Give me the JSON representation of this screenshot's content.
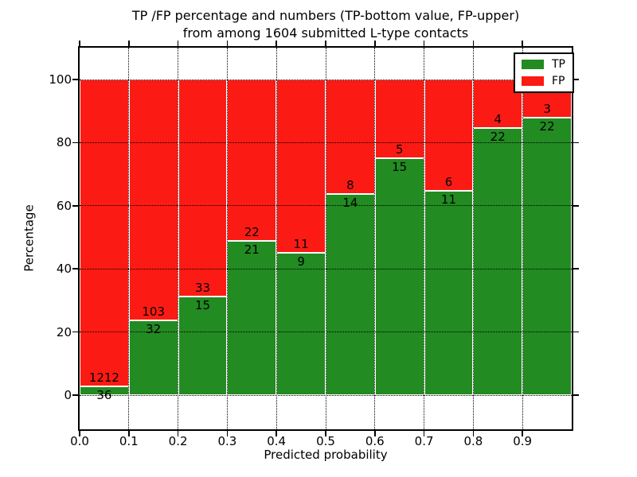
{
  "title": {
    "line1": "TP /FP percentage and numbers (TP-bottom value, FP-upper)",
    "line2": "from among 1604 submitted L-type contacts"
  },
  "axes": {
    "x_label": "Predicted probability",
    "y_label": "Percentage",
    "x_tick_labels": [
      "0.0",
      "0.1",
      "0.2",
      "0.3",
      "0.4",
      "0.5",
      "0.6",
      "0.7",
      "0.8",
      "0.9"
    ],
    "y_tick_labels": [
      "0",
      "20",
      "40",
      "60",
      "80",
      "100"
    ],
    "y_tick_values": [
      0,
      20,
      40,
      60,
      80,
      100
    ]
  },
  "legend": {
    "items": [
      {
        "label": "TP",
        "color": "#228b22"
      },
      {
        "label": "FP",
        "color": "#fb1b14"
      }
    ]
  },
  "chart_data": {
    "type": "bar",
    "stacked": true,
    "normalized_to_percent": true,
    "title": "TP /FP percentage and numbers (TP-bottom value, FP-upper) from among 1604 submitted L-type contacts",
    "xlabel": "Predicted probability",
    "ylabel": "Percentage",
    "xlim": [
      0.0,
      1.0
    ],
    "ylim": [
      -11,
      110
    ],
    "grid": "dotted-black-above-bars",
    "legend_position": "upper right",
    "total_contacts": 1604,
    "bin_width": 0.1,
    "bin_starts": [
      0.0,
      0.1,
      0.2,
      0.3,
      0.4,
      0.5,
      0.6,
      0.7,
      0.8,
      0.9
    ],
    "series": [
      {
        "name": "TP",
        "counts": [
          36,
          32,
          15,
          21,
          9,
          14,
          15,
          11,
          22,
          22
        ],
        "color": "#228b22"
      },
      {
        "name": "FP",
        "counts": [
          1212,
          103,
          33,
          22,
          11,
          8,
          5,
          6,
          4,
          3
        ],
        "color": "#fb1b14"
      }
    ],
    "tp_percent_of_bin": [
      2.88,
      23.7,
      31.25,
      48.84,
      45.0,
      63.64,
      75.0,
      64.71,
      84.62,
      88.0
    ],
    "bar_edge_color": "#ffffff"
  }
}
